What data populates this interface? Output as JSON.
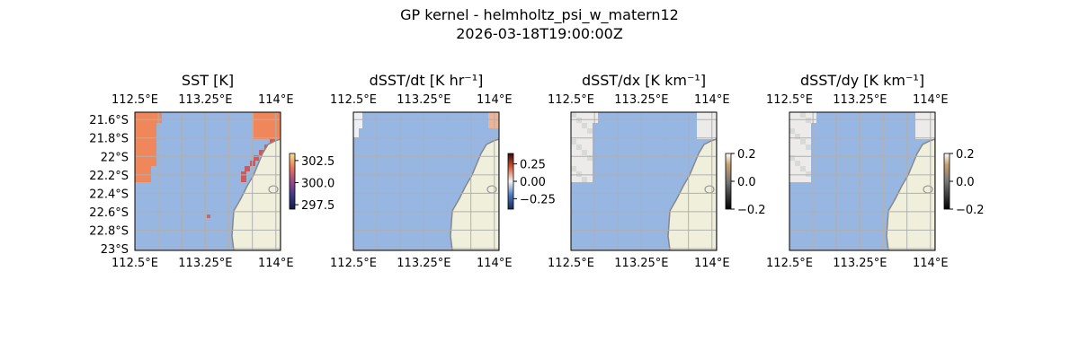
{
  "figure": {
    "suptitle": "GP kernel - helmholtz_psi_w_matern12",
    "timestamp": "2026-03-18T19:00:00Z"
  },
  "colors": {
    "ocean": "#97b6e2",
    "land": "#efefdb",
    "coast": "#888888",
    "grid": "#b0b0b0",
    "sst_warm": "#f0875a",
    "sst_hot": "#d05a5a"
  },
  "chart_data": [
    {
      "type": "heatmap",
      "title": "SST [K]",
      "xticks": [
        "112.5°E",
        "113.25°E",
        "114°E"
      ],
      "xtick_values": [
        112.5,
        113.25,
        114.0
      ],
      "yticks": [
        "21.6°S",
        "21.8°S",
        "22°S",
        "22.2°S",
        "22.4°S",
        "22.6°S",
        "22.8°S",
        "23°S"
      ],
      "ytick_values": [
        -21.6,
        -21.8,
        -22.0,
        -22.2,
        -22.4,
        -22.6,
        -22.8,
        -23.0
      ],
      "xlim": [
        112.5,
        114.05
      ],
      "ylim": [
        -23.02,
        -21.52
      ],
      "colorbar": {
        "ticks": [
          "302.5",
          "300.0",
          "297.5"
        ],
        "values": [
          302.5,
          300.0,
          297.5
        ],
        "range": [
          297,
          303.3
        ],
        "cmap": "thermal"
      },
      "show_left_ticks": true
    },
    {
      "type": "heatmap",
      "title": "dSST/dt [K hr⁻¹]",
      "xticks": [
        "112.5°E",
        "113.25°E",
        "114°E"
      ],
      "xtick_values": [
        112.5,
        113.25,
        114.0
      ],
      "xlim": [
        112.5,
        114.05
      ],
      "ylim": [
        -23.02,
        -21.52
      ],
      "colorbar": {
        "ticks": [
          "0.25",
          "0.00",
          "−0.25"
        ],
        "values": [
          0.25,
          0.0,
          -0.25
        ],
        "range": [
          -0.4,
          0.4
        ],
        "cmap": "diverging"
      },
      "show_left_ticks": false
    },
    {
      "type": "heatmap",
      "title": "dSST/dx [K km⁻¹]",
      "xticks": [
        "112.5°E",
        "113.25°E",
        "114°E"
      ],
      "xtick_values": [
        112.5,
        113.25,
        114.0
      ],
      "xlim": [
        112.5,
        114.05
      ],
      "ylim": [
        -23.02,
        -21.52
      ],
      "colorbar": {
        "ticks": [
          "0.2",
          "0.0",
          "−0.2"
        ],
        "values": [
          0.2,
          0.0,
          -0.2
        ],
        "range": [
          -0.2,
          0.2
        ],
        "cmap": "gray"
      },
      "show_left_ticks": false
    },
    {
      "type": "heatmap",
      "title": "dSST/dy [K km⁻¹]",
      "xticks": [
        "112.5°E",
        "113.25°E",
        "114°E"
      ],
      "xtick_values": [
        112.5,
        113.25,
        114.0
      ],
      "xlim": [
        112.5,
        114.05
      ],
      "ylim": [
        -23.02,
        -21.52
      ],
      "colorbar": {
        "ticks": [
          "0.2",
          "0.0",
          "−0.2"
        ],
        "values": [
          0.2,
          0.0,
          -0.2
        ],
        "range": [
          -0.2,
          0.2
        ],
        "cmap": "gray"
      },
      "show_left_ticks": false
    }
  ]
}
